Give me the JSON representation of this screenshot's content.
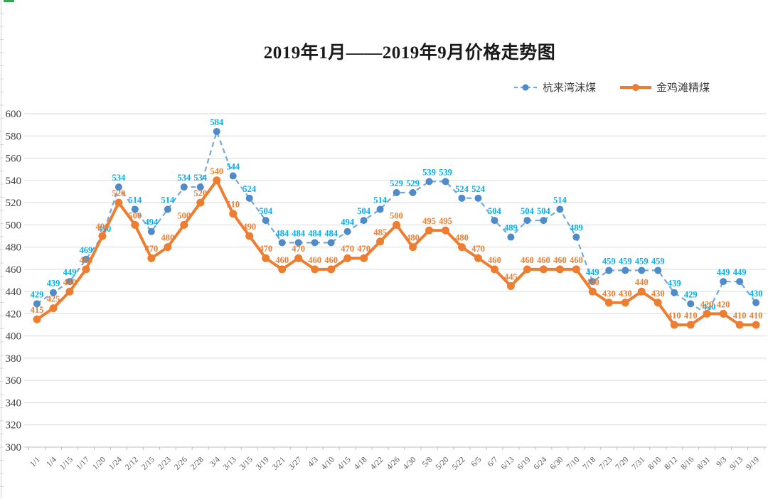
{
  "title": "2019年1月——2019年9月价格走势图",
  "colors": {
    "blue_line": "#74A9D8",
    "blue_marker": "#4E8BC8",
    "blue_label": "#00B0F0",
    "orange": "#ED7D31",
    "grid": "#DADADA",
    "axis": "#BFBFBF",
    "x_tick_text": "#595959",
    "y_tick_text": "#404040",
    "sheet_edge": "#d4d4d4",
    "sheet_corner_green": "#33a852"
  },
  "chart_data": {
    "type": "line",
    "title": "2019年1月——2019年9月价格走势图",
    "categories": [
      "1/1",
      "1/4",
      "1/15",
      "1/17",
      "1/20",
      "1/24",
      "2/12",
      "2/15",
      "2/23",
      "2/26",
      "2/28",
      "3/4",
      "3/13",
      "3/15",
      "3/19",
      "3/21",
      "3/27",
      "4/3",
      "4/10",
      "4/15",
      "4/18",
      "4/22",
      "4/26",
      "4/30",
      "5/8",
      "5/20",
      "5/22",
      "6/5",
      "6/7",
      "6/13",
      "6/19",
      "6/24",
      "6/30",
      "7/10",
      "7/18",
      "7/23",
      "7/29",
      "7/31",
      "8/10",
      "8/12",
      "8/16",
      "8/31",
      "9/3",
      "9/13",
      "9/19"
    ],
    "series": [
      {
        "name": "杭来湾沫煤",
        "line_style": "dashed",
        "values": [
          429,
          439,
          449,
          469,
          490,
          534,
          514,
          494,
          514,
          534,
          534,
          584,
          544,
          524,
          504,
          484,
          484,
          484,
          484,
          494,
          504,
          514,
          529,
          529,
          539,
          539,
          524,
          524,
          504,
          489,
          504,
          504,
          514,
          489,
          449,
          459,
          459,
          459,
          459,
          439,
          429,
          420,
          449,
          449,
          430
        ]
      },
      {
        "name": "金鸡滩精煤",
        "line_style": "solid",
        "values": [
          415,
          425,
          440,
          460,
          490,
          520,
          500,
          470,
          480,
          500,
          520,
          540,
          510,
          490,
          470,
          460,
          470,
          460,
          460,
          470,
          470,
          485,
          500,
          480,
          495,
          495,
          480,
          470,
          460,
          445,
          460,
          460,
          460,
          460,
          440,
          430,
          430,
          440,
          430,
          410,
          410,
          420,
          420,
          410,
          410
        ]
      }
    ],
    "ylim": [
      300,
      600
    ],
    "ytick_step": 20,
    "grid": true,
    "data_labels": true,
    "legend_position": "top-right"
  }
}
